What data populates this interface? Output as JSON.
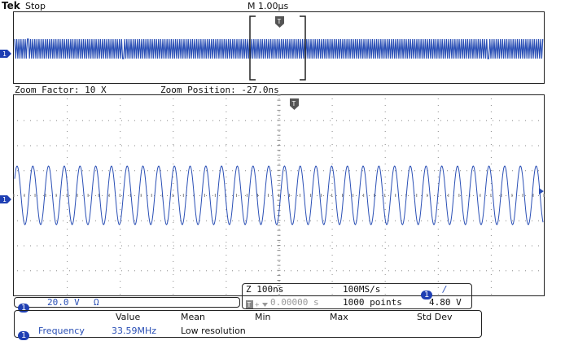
{
  "header": {
    "brand": "Tek",
    "state": "Stop",
    "timebase": "M 1.00μs"
  },
  "overview": {
    "trigger_marker": "T"
  },
  "zoom": {
    "factor_label": "Zoom Factor: 10 X",
    "position_label": "Zoom Position: -27.0ns",
    "trigger_marker": "T"
  },
  "channel1": {
    "badge": "1",
    "scale": "20.0 V",
    "coupling_symbol": "Ω",
    "ground_marker": "1"
  },
  "acquisition": {
    "zoom_timebase": "Z 100ns",
    "sample_rate": "100MS/s",
    "trigger_delay": "0.00000 s",
    "record_length": "1000 points",
    "trigger_source_badge": "1",
    "trigger_slope_symbol": "/",
    "trigger_level": "4.80 V"
  },
  "measurements": {
    "headers": [
      "Value",
      "Mean",
      "Min",
      "Max",
      "Std Dev"
    ],
    "rows": [
      {
        "badge": "1",
        "name": "Frequency",
        "value": "33.59MHz",
        "mean": "Low resolution",
        "min": "",
        "max": "",
        "std_dev": ""
      }
    ]
  },
  "colors": {
    "waveform": "#2a4fb5",
    "badge": "#1f3fb3",
    "frame": "#222222",
    "grid_dots": "#888888"
  }
}
